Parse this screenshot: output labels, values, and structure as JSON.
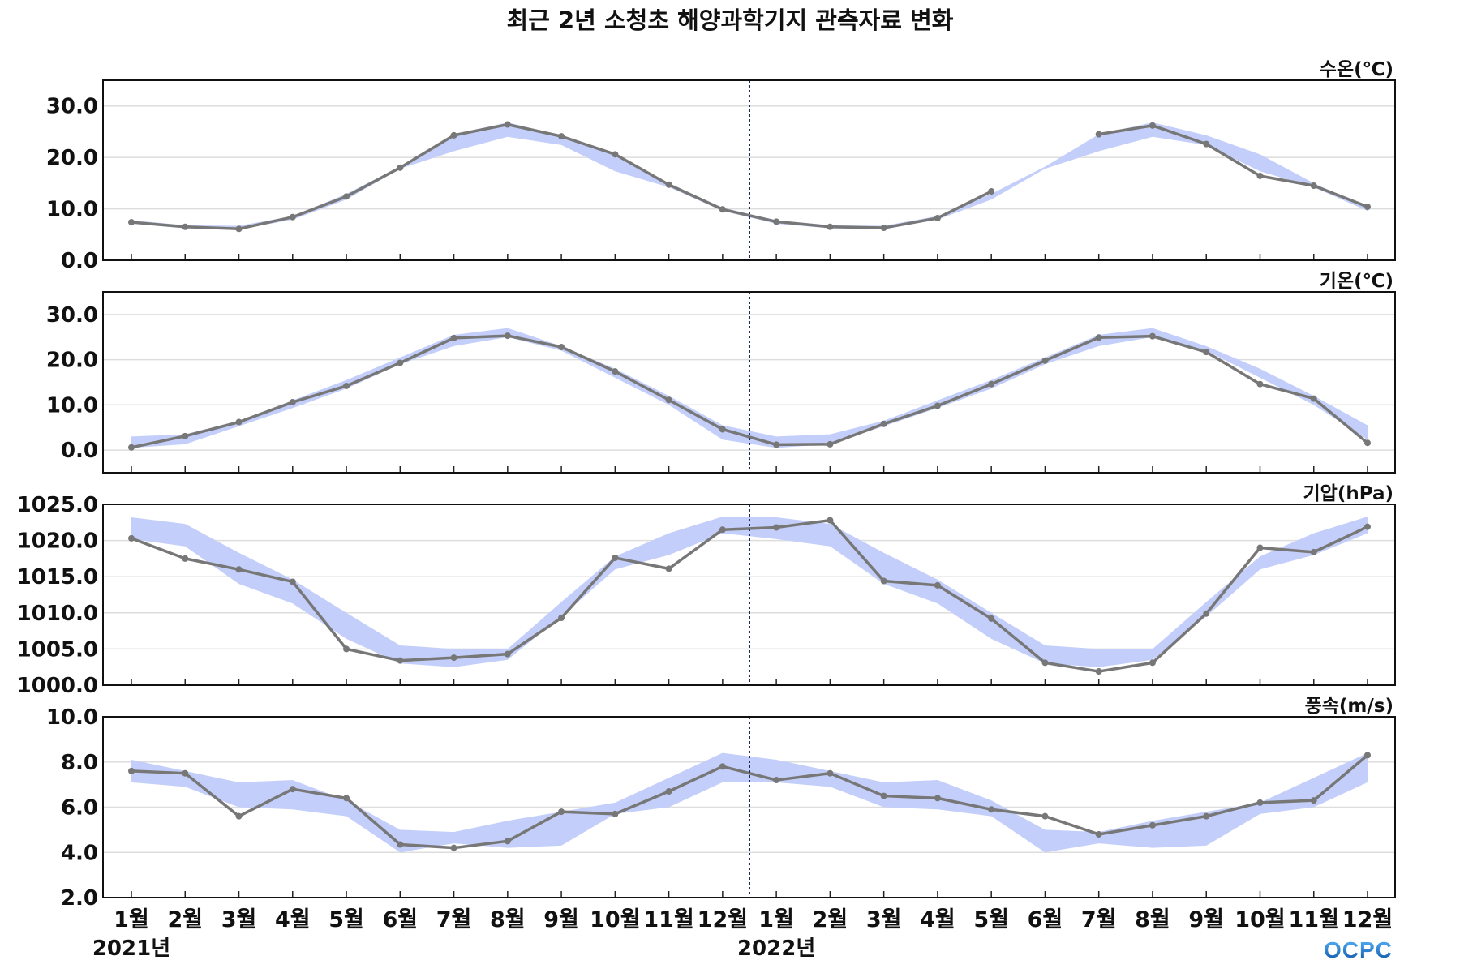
{
  "title": "최근 2년 소청초 해양과학기지 관측자료 변화",
  "logo_text": "OCPC",
  "colors": {
    "line": "#777777",
    "band": "#c3cffa",
    "grid": "#dddddd",
    "divider": "#1a2a5a"
  },
  "chart_data": [
    {
      "type": "line",
      "unit_label": "수온(℃)",
      "ylim": [
        0,
        35
      ],
      "yticks": [
        0,
        10,
        20,
        30
      ],
      "tick_decimals": 1,
      "values": [
        7.4,
        6.5,
        6.1,
        8.4,
        12.4,
        18.0,
        24.3,
        26.4,
        24.1,
        20.6,
        14.7,
        9.9,
        7.5,
        6.5,
        6.3,
        8.2,
        13.4,
        null,
        24.5,
        26.2,
        22.6,
        16.4,
        14.5,
        10.4
      ],
      "band_lower": [
        7.1,
        6.2,
        6.0,
        7.9,
        11.8,
        17.8,
        21.2,
        24.0,
        22.4,
        17.3,
        14.2,
        9.6,
        7.1,
        6.2,
        6.0,
        7.9,
        11.8,
        17.8,
        21.2,
        24.0,
        22.4,
        17.3,
        14.2,
        9.6
      ],
      "band_upper": [
        7.8,
        6.8,
        6.7,
        8.6,
        12.9,
        18.2,
        24.5,
        26.8,
        24.3,
        20.6,
        15.0,
        10.2,
        7.8,
        6.8,
        6.7,
        8.6,
        12.9,
        18.2,
        24.5,
        26.8,
        24.3,
        20.6,
        15.0,
        10.2
      ]
    },
    {
      "type": "line",
      "unit_label": "기온(℃)",
      "ylim": [
        -5,
        35
      ],
      "yticks": [
        0,
        10,
        20,
        30
      ],
      "tick_decimals": 1,
      "values": [
        0.6,
        3.1,
        6.2,
        10.6,
        14.2,
        19.3,
        24.8,
        25.3,
        22.8,
        17.4,
        11.1,
        4.6,
        1.2,
        1.3,
        5.8,
        9.8,
        14.6,
        19.8,
        24.9,
        25.2,
        21.7,
        14.6,
        11.4,
        1.6
      ],
      "band_lower": [
        0.5,
        1.3,
        5.3,
        9.3,
        13.6,
        19.0,
        23.0,
        25.0,
        22.0,
        16.0,
        10.0,
        2.3,
        0.5,
        1.3,
        5.3,
        9.3,
        13.6,
        19.0,
        23.0,
        25.0,
        22.0,
        16.0,
        10.0,
        2.3
      ],
      "band_upper": [
        3.0,
        3.5,
        6.5,
        11.0,
        15.5,
        20.5,
        25.5,
        27.0,
        23.0,
        18.0,
        12.0,
        5.5,
        3.0,
        3.5,
        6.5,
        11.0,
        15.5,
        20.5,
        25.5,
        27.0,
        23.0,
        18.0,
        12.0,
        5.5
      ]
    },
    {
      "type": "line",
      "unit_label": "기압(hPa)",
      "ylim": [
        1000,
        1025
      ],
      "yticks": [
        1000,
        1005,
        1010,
        1015,
        1020,
        1025
      ],
      "tick_decimals": 1,
      "values": [
        1020.3,
        1017.5,
        1016.0,
        1014.3,
        1005.0,
        1003.4,
        1003.8,
        1004.3,
        1009.3,
        1017.6,
        1016.1,
        1021.5,
        1021.8,
        1022.8,
        1014.4,
        1013.8,
        1009.2,
        1003.1,
        1001.9,
        1003.1,
        1009.9,
        1019.0,
        1018.4,
        1021.9
      ],
      "band_lower": [
        1020.2,
        1019.2,
        1014.0,
        1011.3,
        1006.4,
        1003.0,
        1002.5,
        1003.5,
        1009.5,
        1016.0,
        1018.0,
        1021.0,
        1020.2,
        1019.2,
        1014.0,
        1011.3,
        1006.4,
        1003.0,
        1002.5,
        1003.5,
        1009.5,
        1016.0,
        1018.0,
        1021.0
      ],
      "band_upper": [
        1023.2,
        1022.3,
        1018.3,
        1014.6,
        1010.0,
        1005.5,
        1005.0,
        1005.0,
        1011.5,
        1017.8,
        1021.0,
        1023.3,
        1023.2,
        1022.3,
        1018.3,
        1014.6,
        1010.0,
        1005.5,
        1005.0,
        1005.0,
        1011.5,
        1017.8,
        1021.0,
        1023.3
      ]
    },
    {
      "type": "line",
      "unit_label": "풍속(m/s)",
      "ylim": [
        2,
        10
      ],
      "yticks": [
        2,
        4,
        6,
        8,
        10
      ],
      "tick_decimals": 1,
      "values": [
        7.6,
        7.5,
        5.6,
        6.8,
        6.4,
        4.35,
        4.2,
        4.5,
        5.8,
        5.7,
        6.7,
        7.8,
        7.2,
        7.5,
        6.5,
        6.4,
        5.9,
        5.6,
        4.8,
        5.2,
        5.6,
        6.2,
        6.3,
        8.3
      ],
      "band_lower": [
        7.1,
        6.9,
        6.0,
        5.9,
        5.6,
        4.0,
        4.4,
        4.2,
        4.3,
        5.7,
        6.0,
        7.1,
        7.1,
        6.9,
        6.0,
        5.9,
        5.6,
        4.0,
        4.4,
        4.2,
        4.3,
        5.7,
        6.0,
        7.1
      ],
      "band_upper": [
        8.1,
        7.6,
        7.1,
        7.2,
        6.3,
        5.0,
        4.9,
        5.4,
        5.8,
        6.2,
        7.3,
        8.4,
        8.1,
        7.6,
        7.1,
        7.2,
        6.3,
        5.0,
        4.9,
        5.4,
        5.8,
        6.2,
        7.3,
        8.4
      ]
    }
  ],
  "x_axis": {
    "months": [
      "1월",
      "2월",
      "3월",
      "4월",
      "5월",
      "6월",
      "7월",
      "8월",
      "9월",
      "10월",
      "11월",
      "12월",
      "1월",
      "2월",
      "3월",
      "4월",
      "5월",
      "6월",
      "7월",
      "8월",
      "9월",
      "10월",
      "11월",
      "12월"
    ],
    "years": [
      {
        "label": "2021년",
        "index": 0
      },
      {
        "label": "2022년",
        "index": 12
      }
    ],
    "divider_between": [
      11,
      12
    ]
  }
}
